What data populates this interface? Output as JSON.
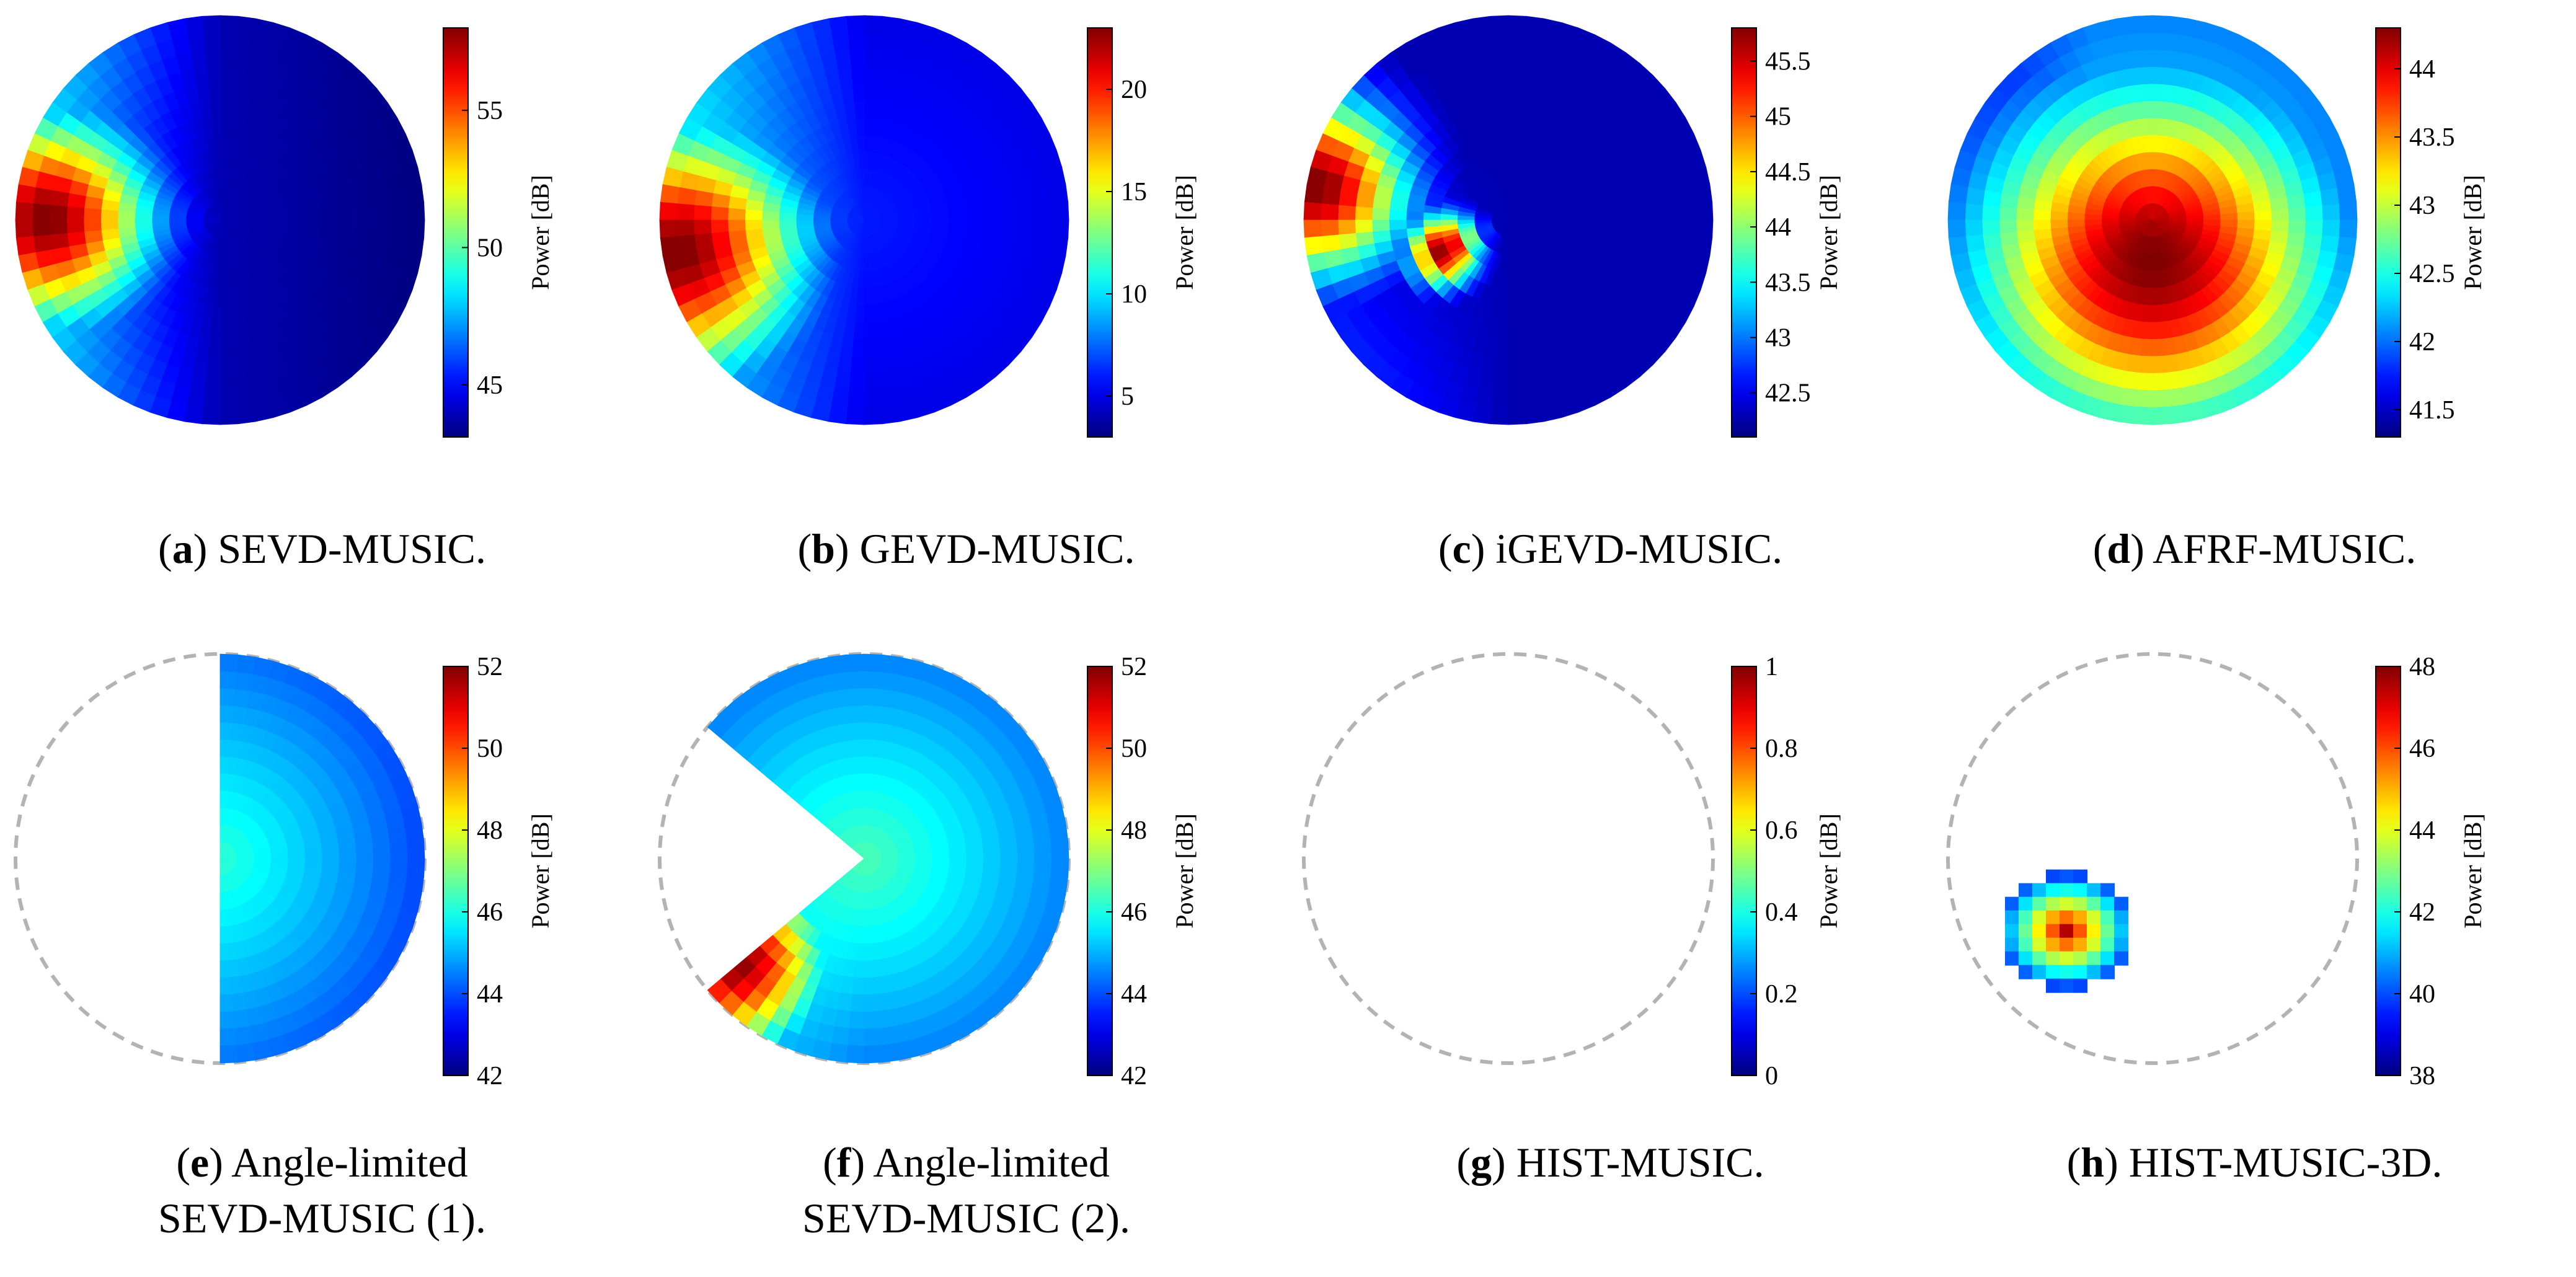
{
  "colorbar_label": "Power [dB]",
  "chart_data": [
    {
      "id": "a",
      "type": "heatmap",
      "caption_letter": "a",
      "caption_text": "SEVD-MUSIC.",
      "caption_line2": "",
      "colorbar": {
        "min": 43.1,
        "max": 58,
        "ticks": [
          45,
          50,
          55
        ]
      },
      "sector": "full",
      "spots": [
        {
          "angle_deg": 180,
          "radius": 0.85,
          "value": 58,
          "spread": 0.35
        }
      ]
    },
    {
      "id": "b",
      "type": "heatmap",
      "caption_letter": "b",
      "caption_text": "GEVD-MUSIC.",
      "caption_line2": "",
      "colorbar": {
        "min": 3,
        "max": 23,
        "ticks": [
          5,
          10,
          15,
          20
        ]
      },
      "sector": "full",
      "spots": [
        {
          "angle_deg": 190,
          "radius": 0.92,
          "value": 23,
          "spread": 0.42
        }
      ]
    },
    {
      "id": "c",
      "type": "heatmap",
      "caption_letter": "c",
      "caption_text": "iGEVD-MUSIC.",
      "caption_line2": "",
      "colorbar": {
        "min": 42.1,
        "max": 45.8,
        "ticks": [
          42.5,
          43,
          43.5,
          44,
          44.5,
          45,
          45.5
        ]
      },
      "sector": "full",
      "spots": [
        {
          "angle_deg": 170,
          "radius": 0.95,
          "value": 45.8,
          "spread": 0.3
        },
        {
          "angle_deg": 205,
          "radius": 0.35,
          "value": 45.8,
          "spread": 0.12
        }
      ]
    },
    {
      "id": "d",
      "type": "heatmap",
      "caption_letter": "d",
      "caption_text": "AFRF-MUSIC.",
      "caption_line2": "",
      "colorbar": {
        "min": 41.3,
        "max": 44.3,
        "ticks": [
          41.5,
          42,
          42.5,
          43,
          43.5,
          44
        ]
      },
      "sector": "full",
      "spots": [
        {
          "angle_deg": 270,
          "radius": 0.2,
          "value": 44.3,
          "spread": 0.6
        }
      ]
    },
    {
      "id": "e",
      "type": "heatmap",
      "caption_letter": "e",
      "caption_text": "Angle-limited",
      "caption_line2": "SEVD-MUSIC (1).",
      "colorbar": {
        "min": 42,
        "max": 52,
        "ticks": [
          42,
          44,
          46,
          48,
          50,
          52
        ]
      },
      "sector": "right-half",
      "spots": []
    },
    {
      "id": "f",
      "type": "heatmap",
      "caption_letter": "f",
      "caption_text": "Angle-limited",
      "caption_line2": "SEVD-MUSIC (2).",
      "colorbar": {
        "min": 42,
        "max": 52,
        "ticks": [
          42,
          44,
          46,
          48,
          50,
          52
        ]
      },
      "sector": "exclude-left-wedge",
      "spots": [
        {
          "angle_deg": 218,
          "radius": 0.8,
          "value": 52,
          "spread": 0.3
        }
      ]
    },
    {
      "id": "g",
      "type": "heatmap",
      "caption_letter": "g",
      "caption_text": "HIST-MUSIC.",
      "caption_line2": "",
      "colorbar": {
        "min": 0,
        "max": 1,
        "ticks": [
          0,
          0.2,
          0.4,
          0.6,
          0.8,
          1
        ]
      },
      "sector": "empty",
      "spots": []
    },
    {
      "id": "h",
      "type": "heatmap",
      "caption_letter": "h",
      "caption_text": "HIST-MUSIC-3D.",
      "caption_line2": "",
      "colorbar": {
        "min": 38,
        "max": 48,
        "ticks": [
          38,
          40,
          42,
          44,
          46,
          48
        ]
      },
      "sector": "blob",
      "spots": [
        {
          "angle_deg": 220,
          "radius": 0.55,
          "value": 48,
          "spread": 0.18
        }
      ]
    }
  ]
}
